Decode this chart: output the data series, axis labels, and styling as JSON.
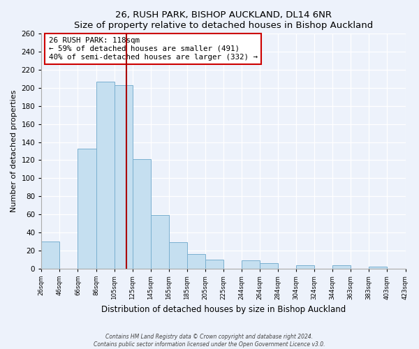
{
  "title": "26, RUSH PARK, BISHOP AUCKLAND, DL14 6NR",
  "subtitle": "Size of property relative to detached houses in Bishop Auckland",
  "xlabel": "Distribution of detached houses by size in Bishop Auckland",
  "ylabel": "Number of detached properties",
  "tick_labels": [
    "26sqm",
    "46sqm",
    "66sqm",
    "86sqm",
    "105sqm",
    "125sqm",
    "145sqm",
    "165sqm",
    "185sqm",
    "205sqm",
    "225sqm",
    "244sqm",
    "264sqm",
    "284sqm",
    "304sqm",
    "324sqm",
    "344sqm",
    "363sqm",
    "383sqm",
    "403sqm",
    "423sqm"
  ],
  "bar_heights": [
    30,
    0,
    133,
    207,
    203,
    121,
    59,
    29,
    16,
    10,
    0,
    9,
    6,
    0,
    4,
    0,
    4,
    0,
    2,
    0
  ],
  "bar_color": "#c5dff0",
  "bar_edge_color": "#7ab0d0",
  "marker_bin": 4,
  "marker_color": "#aa0000",
  "ylim": [
    0,
    260
  ],
  "yticks": [
    0,
    20,
    40,
    60,
    80,
    100,
    120,
    140,
    160,
    180,
    200,
    220,
    240,
    260
  ],
  "annotation_title": "26 RUSH PARK: 118sqm",
  "annotation_line1": "← 59% of detached houses are smaller (491)",
  "annotation_line2": "40% of semi-detached houses are larger (332) →",
  "annotation_box_color": "#ffffff",
  "annotation_box_edge": "#cc0000",
  "footer_line1": "Contains HM Land Registry data © Crown copyright and database right 2024.",
  "footer_line2": "Contains public sector information licensed under the Open Government Licence v3.0.",
  "bg_color": "#edf2fb",
  "grid_color": "#ffffff"
}
